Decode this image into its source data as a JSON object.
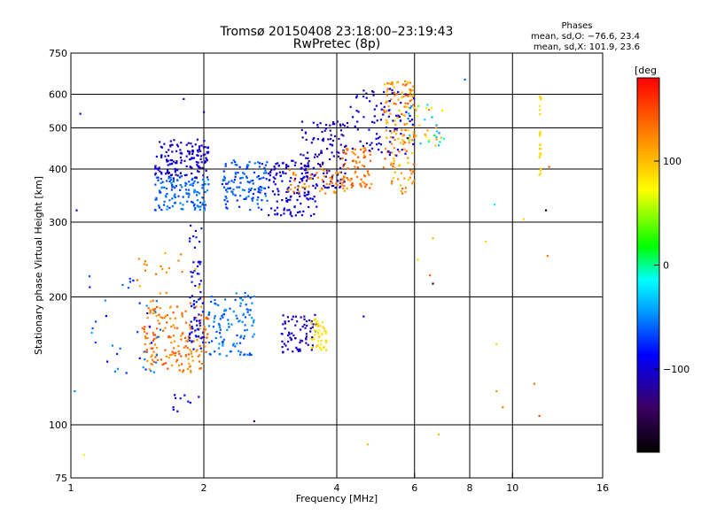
{
  "chart_data": {
    "type": "scatter",
    "title": "Tromsø 20150408 23:18:00–23:19:43",
    "subtitle": "RwPretec (8p)",
    "xlabel": "Frequency [MHz]",
    "ylabel": "Stationary phase Virtual Height [km]",
    "x_scale": "log",
    "y_scale": "log",
    "xlim": [
      1,
      16
    ],
    "ylim": [
      75,
      750
    ],
    "x_ticks": [
      {
        "value": 1,
        "label": "1"
      },
      {
        "value": 2,
        "label": "2"
      },
      {
        "value": 4,
        "label": "4"
      },
      {
        "value": 6,
        "label": "6"
      },
      {
        "value": 8,
        "label": "8"
      },
      {
        "value": 10,
        "label": "10"
      },
      {
        "value": 16,
        "label": "16"
      }
    ],
    "y_ticks": [
      {
        "value": 75,
        "label": "75"
      },
      {
        "value": 100,
        "label": "100"
      },
      {
        "value": 200,
        "label": "200"
      },
      {
        "value": 300,
        "label": "300"
      },
      {
        "value": 400,
        "label": "400"
      },
      {
        "value": 500,
        "label": "500"
      },
      {
        "value": 600,
        "label": "600"
      },
      {
        "value": 750,
        "label": "750"
      }
    ],
    "x_gridlines": [
      2,
      4,
      6,
      8,
      10
    ],
    "y_gridlines": [
      100,
      200,
      300,
      400,
      500,
      600
    ],
    "grid": true,
    "legend": {
      "title": "Phases",
      "lines": [
        "mean, sd,O: −76.6, 23.4",
        "mean, sd,X: 101.9, 23.6"
      ],
      "placement": "top-right"
    },
    "colorbar": {
      "label": "[deg",
      "range": [
        -180,
        180
      ],
      "ticks": [
        {
          "value": 100,
          "label": "100"
        },
        {
          "value": 0,
          "label": "0"
        },
        {
          "value": -100,
          "label": "−100"
        }
      ],
      "colormap": [
        "#000000",
        "#3c0064",
        "#0000ff",
        "#00a0ff",
        "#00ffff",
        "#00ff00",
        "#ffff00",
        "#ff8000",
        "#ff0000"
      ]
    },
    "clusters": [
      {
        "name": "F2-O-blue",
        "x": [
          1.55,
          2.05
        ],
        "y": [
          380,
          470
        ],
        "n": 150,
        "phase": [
          -120,
          -85
        ]
      },
      {
        "name": "F2-O-cyan-low",
        "x": [
          1.55,
          2.05
        ],
        "y": [
          320,
          385
        ],
        "n": 120,
        "phase": [
          -75,
          -45
        ]
      },
      {
        "name": "F2-teal-mid",
        "x": [
          2.2,
          2.8
        ],
        "y": [
          320,
          420
        ],
        "n": 120,
        "phase": [
          -80,
          -50
        ]
      },
      {
        "name": "F2-blue-mid",
        "x": [
          2.8,
          3.6
        ],
        "y": [
          310,
          420
        ],
        "n": 130,
        "phase": [
          -115,
          -85
        ]
      },
      {
        "name": "F2-blue-high",
        "x": [
          3.3,
          4.2
        ],
        "y": [
          360,
          520
        ],
        "n": 120,
        "phase": [
          -125,
          -90
        ]
      },
      {
        "name": "F2-X-orange",
        "x": [
          3.1,
          4.3
        ],
        "y": [
          350,
          400
        ],
        "n": 55,
        "phase": [
          105,
          145
        ]
      },
      {
        "name": "F2-X-orange-2",
        "x": [
          4.1,
          4.8
        ],
        "y": [
          360,
          450
        ],
        "n": 70,
        "phase": [
          110,
          150
        ]
      },
      {
        "name": "F2-X-cusp",
        "x": [
          5.1,
          6.0
        ],
        "y": [
          350,
          650
        ],
        "n": 150,
        "phase": [
          90,
          145
        ]
      },
      {
        "name": "F2-O-cusp",
        "x": [
          4.2,
          6.0
        ],
        "y": [
          430,
          620
        ],
        "n": 90,
        "phase": [
          -115,
          -80
        ]
      },
      {
        "name": "F2-upper-sparse",
        "x": [
          5.8,
          7.0
        ],
        "y": [
          450,
          570
        ],
        "n": 40,
        "phase": [
          -60,
          130
        ]
      },
      {
        "name": "F1-O-orange",
        "x": [
          1.45,
          2.05
        ],
        "y": [
          133,
          190
        ],
        "n": 180,
        "phase": [
          110,
          150
        ]
      },
      {
        "name": "F1-O-blue-spike",
        "x": [
          1.85,
          2.0
        ],
        "y": [
          150,
          300
        ],
        "n": 70,
        "phase": [
          -110,
          -70
        ]
      },
      {
        "name": "F1-cyan-mid",
        "x": [
          2.05,
          2.6
        ],
        "y": [
          145,
          205
        ],
        "n": 110,
        "phase": [
          -70,
          -45
        ]
      },
      {
        "name": "F1-blue-high",
        "x": [
          3.0,
          3.6
        ],
        "y": [
          148,
          182
        ],
        "n": 70,
        "phase": [
          -120,
          -95
        ]
      },
      {
        "name": "F1-X-yellow",
        "x": [
          3.5,
          3.8
        ],
        "y": [
          150,
          178
        ],
        "n": 45,
        "phase": [
          75,
          95
        ]
      },
      {
        "name": "E-sparse",
        "x": [
          1.1,
          1.6
        ],
        "y": [
          130,
          230
        ],
        "n": 40,
        "phase": [
          -90,
          -40
        ]
      },
      {
        "name": "X-sparse",
        "x": [
          1.4,
          2.0
        ],
        "y": [
          190,
          260
        ],
        "n": 25,
        "phase": [
          100,
          140
        ]
      },
      {
        "name": "scatter-low",
        "x": [
          1.7,
          1.95
        ],
        "y": [
          105,
          118
        ],
        "n": 10,
        "phase": [
          -110,
          -80
        ]
      },
      {
        "name": "sparse-right-yellow",
        "x": [
          11.5,
          11.6
        ],
        "y": [
          380,
          600
        ],
        "n": 25,
        "phase": [
          80,
          95
        ]
      }
    ],
    "points": [
      {
        "x": 1.02,
        "y": 120,
        "phase": -50
      },
      {
        "x": 1.07,
        "y": 85,
        "phase": 80
      },
      {
        "x": 1.05,
        "y": 540,
        "phase": -110
      },
      {
        "x": 1.03,
        "y": 320,
        "phase": -85
      },
      {
        "x": 1.8,
        "y": 585,
        "phase": -110
      },
      {
        "x": 2.0,
        "y": 545,
        "phase": -110
      },
      {
        "x": 2.6,
        "y": 102,
        "phase": -140
      },
      {
        "x": 4.7,
        "y": 90,
        "phase": 100
      },
      {
        "x": 6.8,
        "y": 95,
        "phase": 100
      },
      {
        "x": 6.6,
        "y": 215,
        "phase": -160
      },
      {
        "x": 6.5,
        "y": 225,
        "phase": 140
      },
      {
        "x": 6.6,
        "y": 275,
        "phase": 100
      },
      {
        "x": 7.8,
        "y": 650,
        "phase": -60
      },
      {
        "x": 9.1,
        "y": 330,
        "phase": -20
      },
      {
        "x": 9.5,
        "y": 110,
        "phase": 130
      },
      {
        "x": 9.2,
        "y": 155,
        "phase": 90
      },
      {
        "x": 9.2,
        "y": 120,
        "phase": 120
      },
      {
        "x": 10.6,
        "y": 305,
        "phase": 90
      },
      {
        "x": 11.2,
        "y": 125,
        "phase": 130
      },
      {
        "x": 11.5,
        "y": 105,
        "phase": 150
      },
      {
        "x": 12.0,
        "y": 250,
        "phase": 130
      },
      {
        "x": 11.9,
        "y": 320,
        "phase": -170
      },
      {
        "x": 12.1,
        "y": 405,
        "phase": 140
      },
      {
        "x": 6.1,
        "y": 245,
        "phase": 90
      },
      {
        "x": 4.6,
        "y": 180,
        "phase": -90
      },
      {
        "x": 8.7,
        "y": 270,
        "phase": 90
      }
    ]
  }
}
